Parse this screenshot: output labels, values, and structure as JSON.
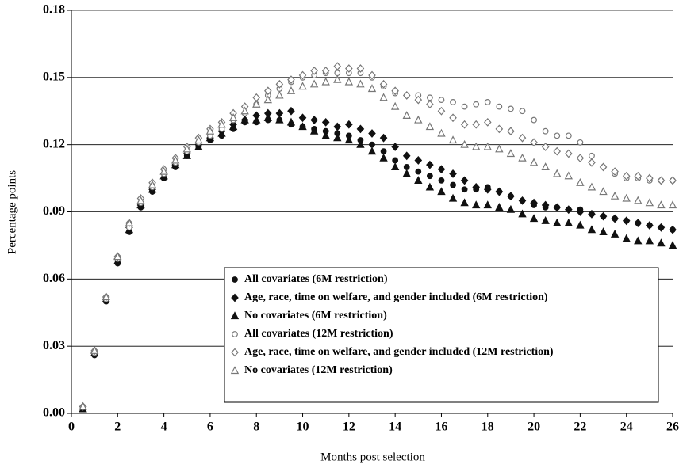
{
  "chart_data": {
    "type": "scatter",
    "xlabel": "Months post selection",
    "ylabel": "Percentage points",
    "x": [
      0.5,
      1,
      1.5,
      2,
      2.5,
      3,
      3.5,
      4,
      4.5,
      5,
      5.5,
      6,
      6.5,
      7,
      7.5,
      8,
      8.5,
      9,
      9.5,
      10,
      10.5,
      11,
      11.5,
      12,
      12.5,
      13,
      13.5,
      14,
      14.5,
      15,
      15.5,
      16,
      16.5,
      17,
      17.5,
      18,
      18.5,
      19,
      19.5,
      20,
      20.5,
      21,
      21.5,
      22,
      22.5,
      23,
      23.5,
      24,
      24.5,
      25,
      25.5,
      26
    ],
    "xlim": [
      0,
      26
    ],
    "xticks": [
      0,
      2,
      4,
      6,
      8,
      10,
      12,
      14,
      16,
      18,
      20,
      22,
      24,
      26
    ],
    "ylim": [
      0,
      0.18
    ],
    "yticks": [
      {
        "value": 0,
        "label": "0.00"
      },
      {
        "value": 0.03,
        "label": "0.03"
      },
      {
        "value": 0.06,
        "label": "0.06"
      },
      {
        "value": 0.09,
        "label": "0.09"
      },
      {
        "value": 0.12,
        "label": "0.12"
      },
      {
        "value": 0.15,
        "label": "0.15"
      },
      {
        "value": 0.18,
        "label": "0.18"
      }
    ],
    "grid": true,
    "series": [
      {
        "name": "All covariates (6M restriction)",
        "color": "#111111",
        "marker": "circle",
        "filled": true,
        "values": [
          0.002,
          0.026,
          0.05,
          0.067,
          0.081,
          0.092,
          0.099,
          0.105,
          0.11,
          0.115,
          0.119,
          0.122,
          0.124,
          0.127,
          0.13,
          0.13,
          0.131,
          0.131,
          0.129,
          0.128,
          0.127,
          0.126,
          0.125,
          0.124,
          0.122,
          0.12,
          0.117,
          0.113,
          0.11,
          0.108,
          0.106,
          0.104,
          0.102,
          0.1,
          0.1,
          0.101,
          0.099,
          0.097,
          0.095,
          0.093,
          0.092,
          0.092,
          0.091,
          0.091,
          0.089,
          0.088,
          0.087,
          0.086,
          0.085,
          0.084,
          0.083,
          0.082
        ]
      },
      {
        "name": "Age, race, time on welfare, and gender included (6M restriction)",
        "color": "#111111",
        "marker": "diamond",
        "filled": true,
        "values": [
          0.003,
          0.027,
          0.051,
          0.069,
          0.083,
          0.093,
          0.1,
          0.107,
          0.111,
          0.116,
          0.12,
          0.123,
          0.126,
          0.129,
          0.131,
          0.133,
          0.134,
          0.134,
          0.135,
          0.132,
          0.131,
          0.13,
          0.128,
          0.129,
          0.127,
          0.125,
          0.123,
          0.119,
          0.115,
          0.113,
          0.111,
          0.109,
          0.107,
          0.104,
          0.101,
          0.1,
          0.099,
          0.097,
          0.095,
          0.094,
          0.093,
          0.092,
          0.091,
          0.09,
          0.089,
          0.088,
          0.087,
          0.086,
          0.085,
          0.084,
          0.083,
          0.082
        ]
      },
      {
        "name": "No covariates (6M restriction)",
        "color": "#111111",
        "marker": "triangle",
        "filled": true,
        "values": [
          0.002,
          0.027,
          0.051,
          0.068,
          0.082,
          0.093,
          0.1,
          0.106,
          0.111,
          0.115,
          0.119,
          0.123,
          0.125,
          0.128,
          0.131,
          0.131,
          0.132,
          0.131,
          0.13,
          0.128,
          0.126,
          0.124,
          0.123,
          0.122,
          0.12,
          0.117,
          0.114,
          0.11,
          0.107,
          0.104,
          0.101,
          0.099,
          0.096,
          0.094,
          0.093,
          0.093,
          0.092,
          0.091,
          0.089,
          0.087,
          0.086,
          0.085,
          0.085,
          0.084,
          0.082,
          0.081,
          0.08,
          0.078,
          0.077,
          0.077,
          0.076,
          0.075
        ]
      },
      {
        "name": "All covariates (12M restriction)",
        "color": "#777777",
        "marker": "circle",
        "filled": false,
        "values": [
          0.003,
          0.027,
          0.051,
          0.069,
          0.083,
          0.094,
          0.101,
          0.107,
          0.112,
          0.117,
          0.121,
          0.124,
          0.127,
          0.131,
          0.134,
          0.138,
          0.142,
          0.145,
          0.148,
          0.15,
          0.151,
          0.152,
          0.152,
          0.152,
          0.152,
          0.15,
          0.146,
          0.143,
          0.142,
          0.142,
          0.141,
          0.14,
          0.139,
          0.137,
          0.138,
          0.139,
          0.137,
          0.136,
          0.135,
          0.131,
          0.126,
          0.124,
          0.124,
          0.121,
          0.115,
          0.11,
          0.107,
          0.105,
          0.105,
          0.104,
          0.104,
          0.104
        ]
      },
      {
        "name": "Age, race, time on welfare, and gender included (12M restriction)",
        "color": "#777777",
        "marker": "diamond",
        "filled": false,
        "values": [
          0.003,
          0.028,
          0.052,
          0.07,
          0.085,
          0.096,
          0.103,
          0.109,
          0.114,
          0.119,
          0.123,
          0.127,
          0.13,
          0.134,
          0.137,
          0.141,
          0.144,
          0.147,
          0.149,
          0.151,
          0.153,
          0.153,
          0.155,
          0.154,
          0.154,
          0.151,
          0.147,
          0.144,
          0.142,
          0.14,
          0.138,
          0.135,
          0.132,
          0.129,
          0.129,
          0.13,
          0.127,
          0.126,
          0.123,
          0.121,
          0.119,
          0.117,
          0.116,
          0.114,
          0.112,
          0.11,
          0.108,
          0.106,
          0.106,
          0.105,
          0.104,
          0.104
        ]
      },
      {
        "name": "No covariates (12M restriction)",
        "color": "#777777",
        "marker": "triangle",
        "filled": false,
        "values": [
          0.003,
          0.028,
          0.052,
          0.07,
          0.085,
          0.095,
          0.102,
          0.108,
          0.113,
          0.118,
          0.122,
          0.126,
          0.129,
          0.132,
          0.135,
          0.138,
          0.14,
          0.142,
          0.144,
          0.146,
          0.147,
          0.148,
          0.149,
          0.148,
          0.147,
          0.145,
          0.141,
          0.137,
          0.133,
          0.131,
          0.128,
          0.125,
          0.122,
          0.12,
          0.119,
          0.119,
          0.118,
          0.116,
          0.114,
          0.112,
          0.11,
          0.107,
          0.106,
          0.103,
          0.101,
          0.099,
          0.097,
          0.096,
          0.095,
          0.094,
          0.093,
          0.093
        ]
      }
    ]
  }
}
